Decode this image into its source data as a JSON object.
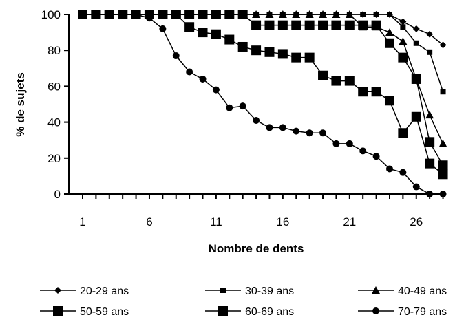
{
  "chart_data": {
    "type": "line",
    "title": "",
    "xlabel": "Nombre de dents",
    "ylabel": "% de sujets",
    "xlim": [
      1,
      28
    ],
    "ylim": [
      0,
      100
    ],
    "x_ticks": [
      "1",
      "6",
      "11",
      "16",
      "21",
      "26"
    ],
    "y_ticks": [
      "0",
      "20",
      "40",
      "60",
      "80",
      "100"
    ],
    "grid": false,
    "legend": "bottom",
    "x": [
      1,
      2,
      3,
      4,
      5,
      6,
      7,
      8,
      9,
      10,
      11,
      12,
      13,
      14,
      15,
      16,
      17,
      18,
      19,
      20,
      21,
      22,
      23,
      24,
      25,
      26,
      27,
      28
    ],
    "series": [
      {
        "name": "20-29 ans",
        "marker": "diamond-small",
        "values": [
          100,
          100,
          100,
          100,
          100,
          100,
          100,
          100,
          100,
          100,
          100,
          100,
          100,
          100,
          100,
          100,
          100,
          100,
          100,
          100,
          100,
          100,
          100,
          100,
          96,
          92,
          89,
          83
        ]
      },
      {
        "name": "30-39 ans",
        "marker": "square-small",
        "values": [
          100,
          100,
          100,
          100,
          100,
          100,
          100,
          100,
          100,
          100,
          100,
          100,
          100,
          100,
          100,
          100,
          100,
          100,
          100,
          100,
          100,
          100,
          100,
          100,
          93,
          84,
          79,
          57
        ]
      },
      {
        "name": "40-49 ans",
        "marker": "triangle",
        "values": [
          100,
          100,
          100,
          100,
          100,
          100,
          100,
          100,
          100,
          100,
          100,
          100,
          100,
          100,
          100,
          100,
          100,
          100,
          100,
          100,
          100,
          93,
          93,
          90,
          85,
          64,
          44,
          28
        ]
      },
      {
        "name": "50-59 ans",
        "marker": "square-large",
        "values": [
          100,
          100,
          100,
          100,
          100,
          100,
          100,
          100,
          100,
          100,
          100,
          100,
          100,
          94,
          94,
          94,
          94,
          94,
          94,
          94,
          94,
          94,
          94,
          84,
          76,
          64,
          29,
          16
        ]
      },
      {
        "name": "60-69 ans",
        "marker": "square-large",
        "values": [
          100,
          100,
          100,
          100,
          100,
          100,
          100,
          100,
          93,
          90,
          89,
          86,
          82,
          80,
          79,
          78,
          76,
          76,
          66,
          63,
          63,
          57,
          57,
          52,
          34,
          43,
          17,
          11
        ]
      },
      {
        "name": "70-79 ans",
        "marker": "circle",
        "values": [
          100,
          100,
          100,
          100,
          100,
          98,
          92,
          77,
          68,
          64,
          58,
          48,
          49,
          41,
          37,
          37,
          35,
          34,
          34,
          28,
          28,
          24,
          21,
          14,
          12,
          4,
          0,
          0
        ]
      }
    ]
  }
}
